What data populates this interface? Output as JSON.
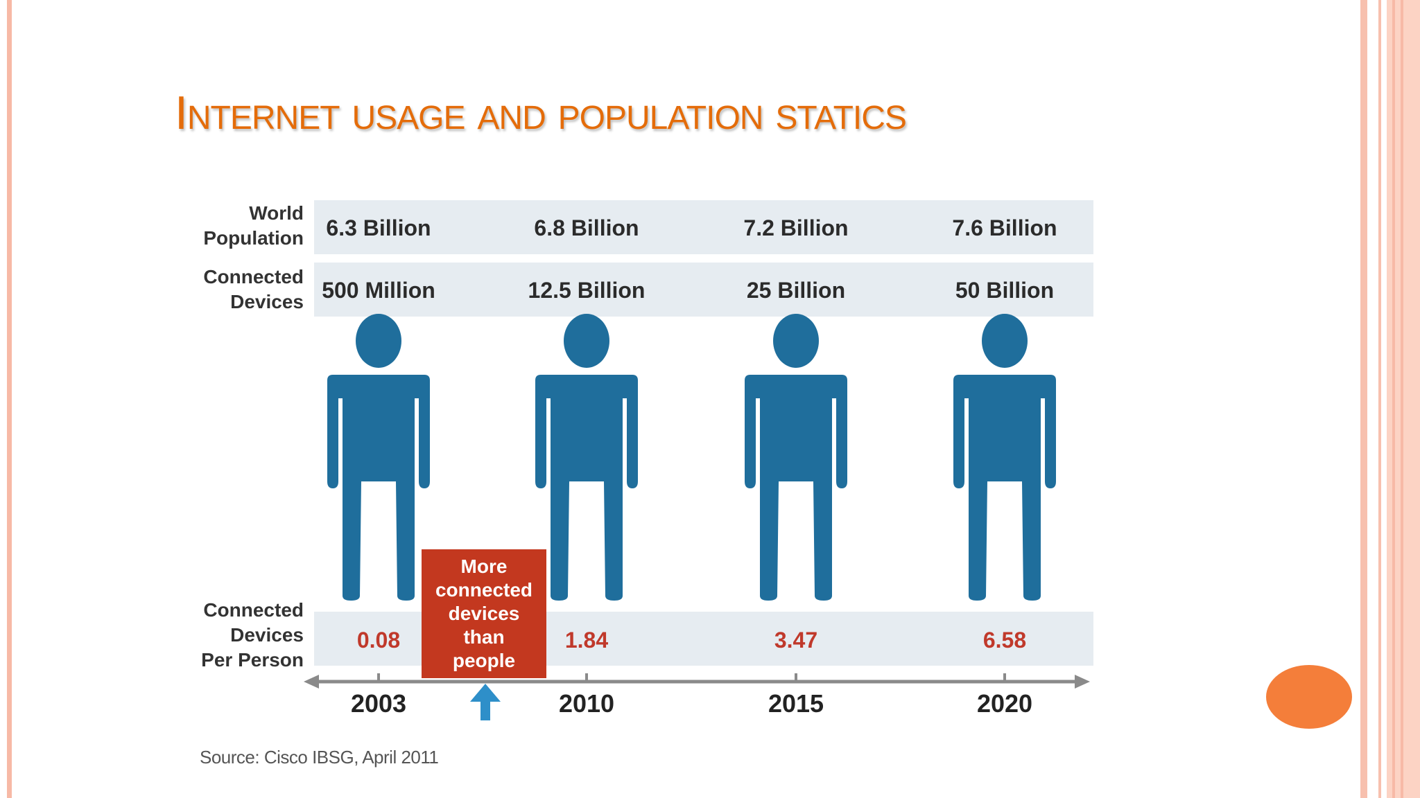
{
  "slide": {
    "title": "Internet usage and population statics"
  },
  "chart_data": {
    "type": "table",
    "row_labels": {
      "population": [
        "World",
        "Population"
      ],
      "devices": [
        "Connected",
        "Devices"
      ],
      "per_person": [
        "Connected",
        "Devices",
        "Per Person"
      ]
    },
    "years": [
      "2003",
      "2010",
      "2015",
      "2020"
    ],
    "world_population": [
      "6.3 Billion",
      "6.8 Billion",
      "7.2 Billion",
      "7.6 Billion"
    ],
    "connected_devices": [
      "500 Million",
      "12.5 Billion",
      "25 Billion",
      "50 Billion"
    ],
    "devices_per_person": [
      "0.08",
      "1.84",
      "3.47",
      "6.58"
    ],
    "callout": [
      "More",
      "connected",
      "devices",
      "than",
      "people"
    ],
    "source": "Source: Cisco IBSG, April 2011",
    "colors": {
      "figure": "#1f6e9c",
      "band": "#e6ecf1",
      "value_red": "#c0392b",
      "callout_bg": "#c3381f",
      "arrow_up": "#2e8fc9",
      "axis": "#8a8a8a"
    }
  }
}
